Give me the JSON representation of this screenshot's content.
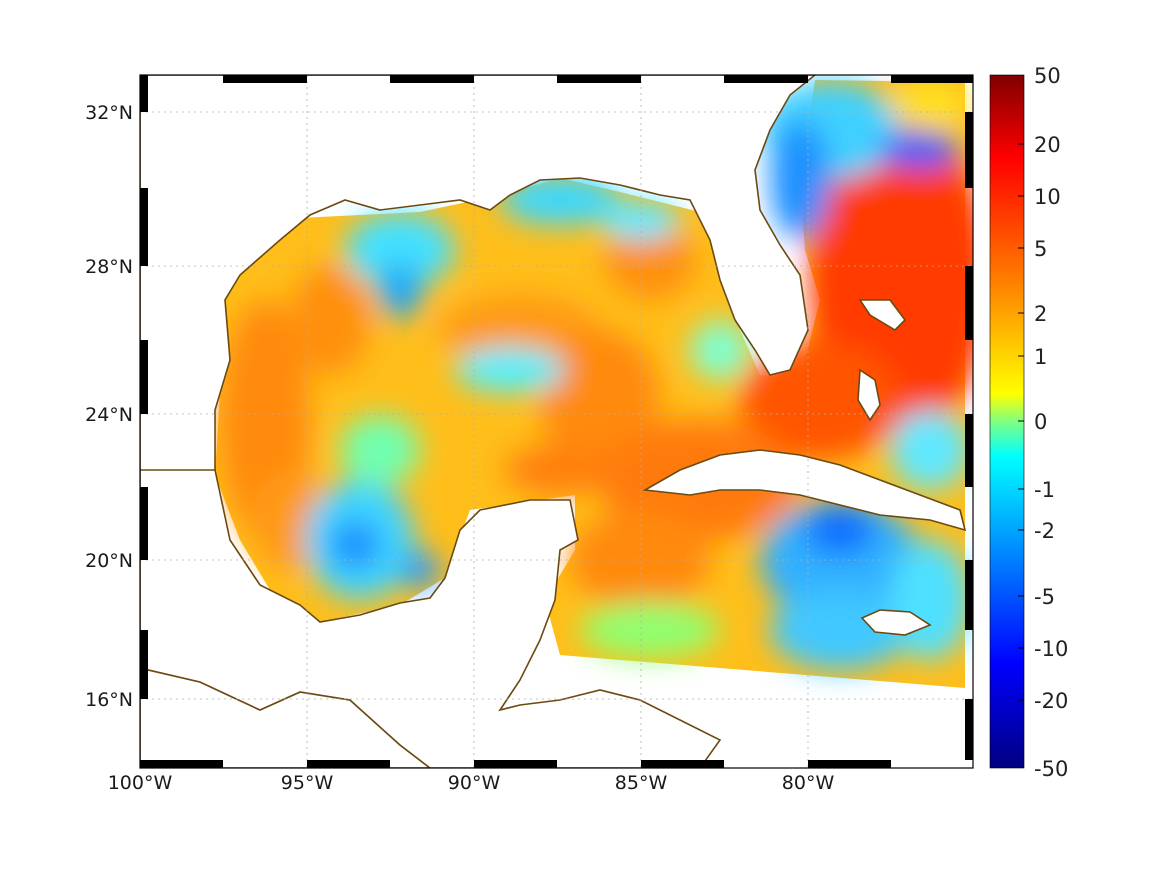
{
  "map": {
    "longitude_labels": [
      "100°W",
      "95°W",
      "90°W",
      "85°W",
      "80°W"
    ],
    "latitude_labels": [
      "32°N",
      "28°N",
      "24°N",
      "20°N",
      "16°N"
    ],
    "land_color": "#ffffff",
    "coastline_color": "#6b4a12",
    "grid": true
  },
  "colorbar": {
    "tick_labels": [
      "50",
      "20",
      "10",
      "5",
      "2",
      "1",
      "0",
      "-1",
      "-2",
      "-5",
      "-10",
      "-20",
      "-50"
    ],
    "colors_top_to_bottom": [
      "#800000",
      "#ff0000",
      "#ff8000",
      "#ffff00",
      "#00ffff",
      "#0000ff",
      "#000080"
    ]
  }
}
